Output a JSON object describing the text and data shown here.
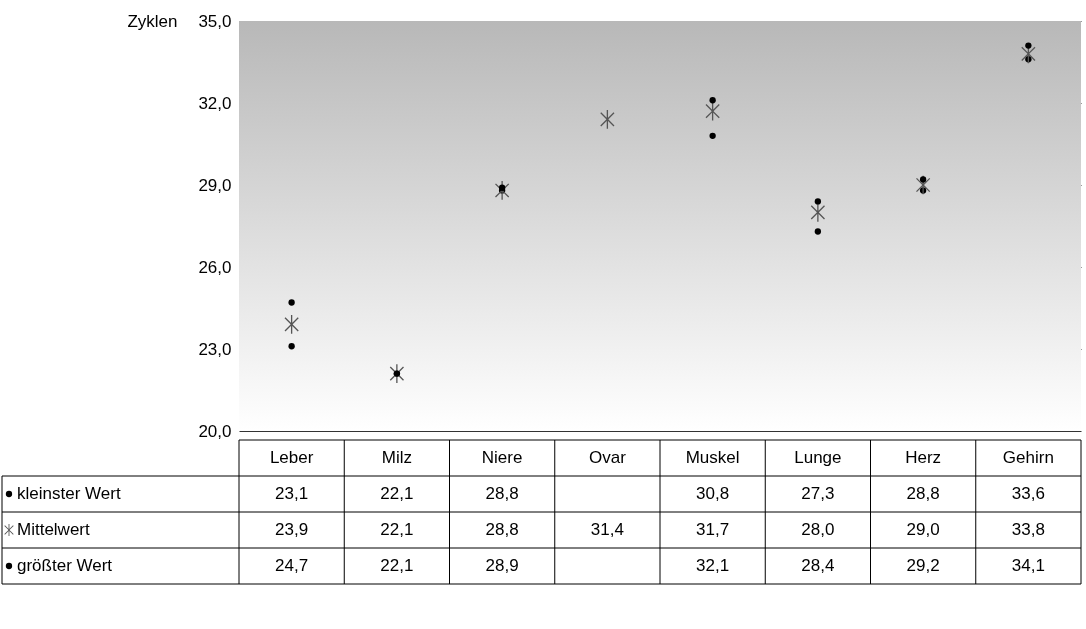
{
  "chart_data": {
    "type": "scatter",
    "ylabel": "Zyklen",
    "categories": [
      "Leber",
      "Milz",
      "Niere",
      "Ovar",
      "Muskel",
      "Lunge",
      "Herz",
      "Gehirn"
    ],
    "series": [
      {
        "name": "kleinster Wert",
        "color": "#000000",
        "marker": "circle",
        "values": [
          23.1,
          22.1,
          28.8,
          null,
          30.8,
          27.3,
          28.8,
          33.6
        ],
        "value_labels": [
          "23,1",
          "22,1",
          "28,8",
          null,
          "30,8",
          "27,3",
          "28,8",
          "33,6"
        ]
      },
      {
        "name": "Mittelwert",
        "color": "#555555",
        "marker": "cross",
        "values": [
          23.9,
          22.1,
          28.8,
          31.4,
          31.7,
          28.0,
          29.0,
          33.8
        ],
        "value_labels": [
          "23,9",
          "22,1",
          "28,8",
          "31,4",
          "31,7",
          "28,0",
          "29,0",
          "33,8"
        ]
      },
      {
        "name": "größter Wert",
        "color": "#000000",
        "marker": "circle",
        "values": [
          24.7,
          22.1,
          28.9,
          null,
          32.1,
          28.4,
          29.2,
          34.1
        ],
        "value_labels": [
          "24,7",
          "22,1",
          "28,9",
          null,
          "32,1",
          "28,4",
          "29,2",
          "34,1"
        ]
      }
    ],
    "ylim": [
      20,
      35
    ],
    "yticks": [
      {
        "value": 20,
        "label": "20,0"
      },
      {
        "value": 23,
        "label": "23,0"
      },
      {
        "value": 26,
        "label": "26,0"
      },
      {
        "value": 29,
        "label": "29,0"
      },
      {
        "value": 32,
        "label": "32,0"
      },
      {
        "value": 35,
        "label": "35,0"
      }
    ],
    "grid": "y",
    "legend": "bottom"
  }
}
